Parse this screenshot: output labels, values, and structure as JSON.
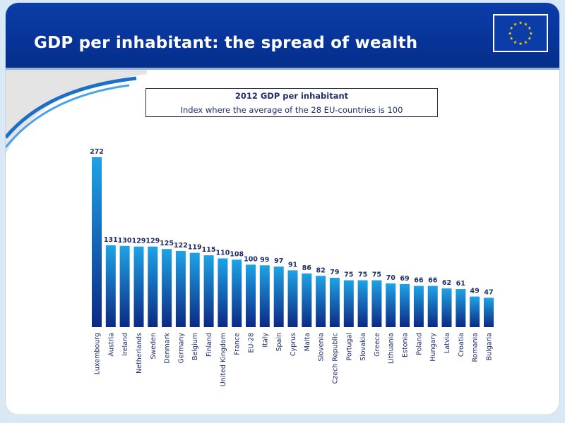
{
  "header": {
    "title": "GDP per inhabitant: the spread of wealth",
    "flag_icon": "eu-flag-icon"
  },
  "colors": {
    "header_blue": "#0a3aa3",
    "bar_top": "#1e9de0",
    "bar_bottom": "#0d2a84",
    "label_text": "#1f2d6b"
  },
  "chart_data": {
    "type": "bar",
    "title": "2012 GDP per inhabitant",
    "subtitle": "Index where the average of the 28 EU-countries is 100",
    "categories": [
      "Luxembourg",
      "Austria",
      "Ireland",
      "Netherlands",
      "Sweden",
      "Denmark",
      "Germany",
      "Belgium",
      "Finland",
      "United Kingdom",
      "France",
      "EU-28",
      "Italy",
      "Spain",
      "Cyprus",
      "Malta",
      "Slovenia",
      "Czech Republic",
      "Portugal",
      "Slovakia",
      "Greece",
      "Lithuania",
      "Estonia",
      "Poland",
      "Hungary",
      "Latvia",
      "Croatia",
      "Romania",
      "Bulgaria"
    ],
    "values": [
      272,
      131,
      130,
      129,
      129,
      125,
      122,
      119,
      115,
      110,
      108,
      100,
      99,
      97,
      91,
      86,
      82,
      79,
      75,
      75,
      75,
      70,
      69,
      66,
      66,
      62,
      61,
      49,
      47
    ],
    "xlabel": "",
    "ylabel": "",
    "ylim": [
      0,
      272
    ],
    "grid": false,
    "data_labels": true
  }
}
